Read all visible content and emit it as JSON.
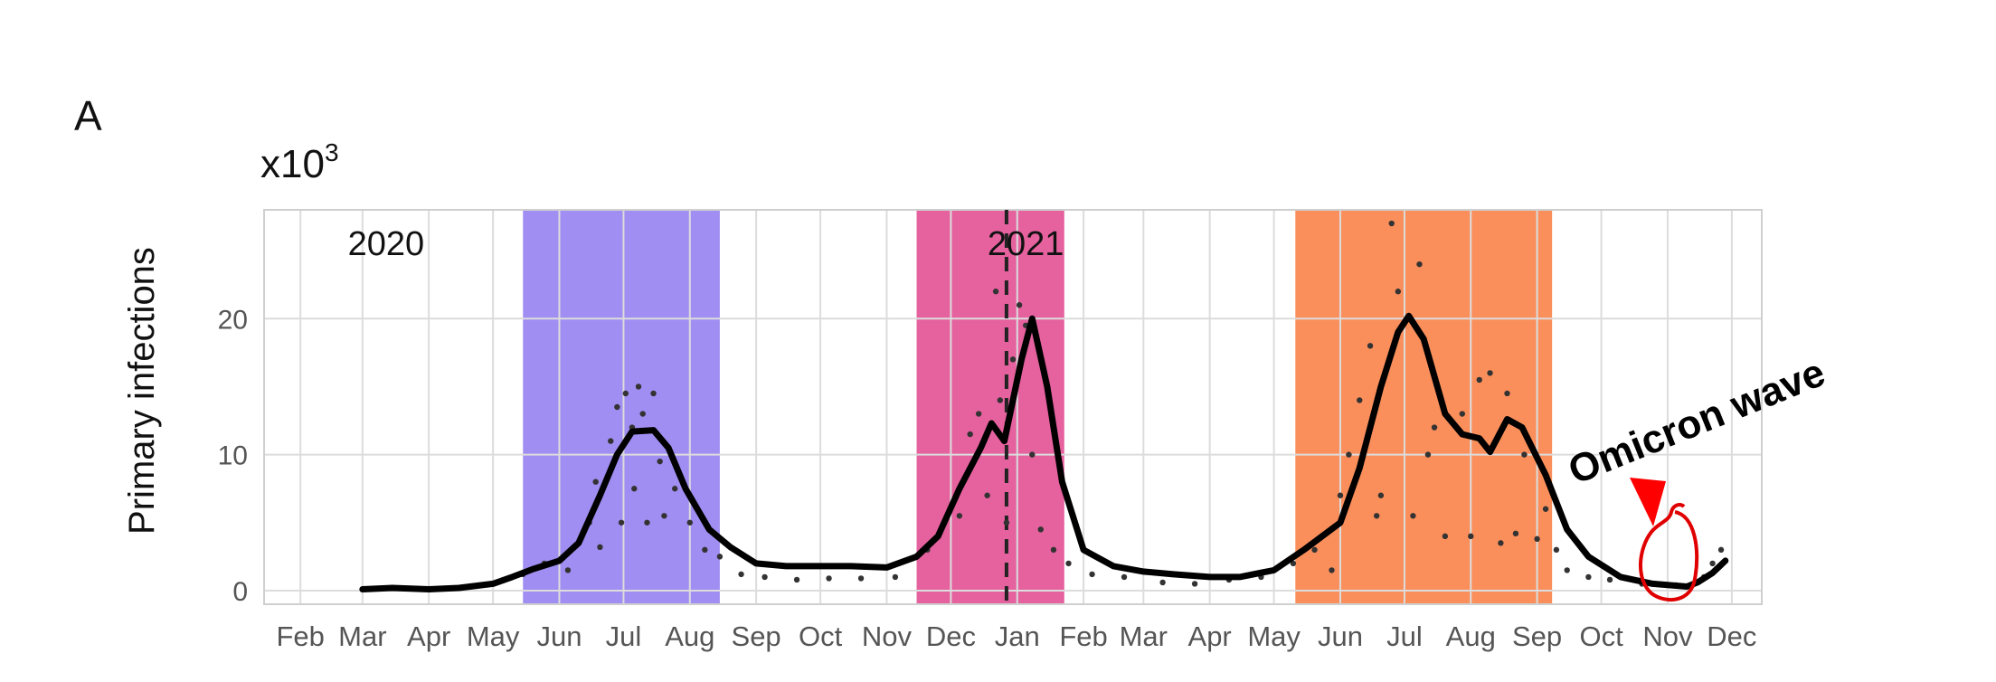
{
  "panel_label": "A",
  "chart_data": {
    "type": "line",
    "title": "",
    "ylabel": "Primary infections",
    "yscale_label": "x10",
    "yscale_exponent": "3",
    "xlabel": "",
    "ylim": [
      -1,
      28
    ],
    "yticks": [
      0,
      10,
      20
    ],
    "xlim": [
      "2020-01-15",
      "2021-12-15"
    ],
    "x_tick_dates": [
      "2020-02-01",
      "2020-03-01",
      "2020-04-01",
      "2020-05-01",
      "2020-06-01",
      "2020-07-01",
      "2020-08-01",
      "2020-09-01",
      "2020-10-01",
      "2020-11-01",
      "2020-12-01",
      "2021-01-01",
      "2021-02-01",
      "2021-03-01",
      "2021-04-01",
      "2021-05-01",
      "2021-06-01",
      "2021-07-01",
      "2021-08-01",
      "2021-09-01",
      "2021-10-01",
      "2021-11-01",
      "2021-12-01"
    ],
    "x_tick_labels": [
      "Feb",
      "Mar",
      "Apr",
      "May",
      "Jun",
      "Jul",
      "Aug",
      "Sep",
      "Oct",
      "Nov",
      "Dec",
      "Jan",
      "Feb",
      "Mar",
      "Apr",
      "May",
      "Jun",
      "Jul",
      "Aug",
      "Sep",
      "Oct",
      "Nov",
      "Dec"
    ],
    "year_labels": [
      {
        "text": "2020",
        "x": "2020-03-12"
      },
      {
        "text": "2021",
        "x": "2021-01-05"
      }
    ],
    "grid": true,
    "shaded_periods": [
      {
        "start": "2020-05-15",
        "end": "2020-08-15",
        "color": "#a08ef2"
      },
      {
        "start": "2020-11-15",
        "end": "2021-01-23",
        "color": "#e5629f"
      },
      {
        "start": "2021-05-11",
        "end": "2021-09-08",
        "color": "#fa8f5c"
      }
    ],
    "vertical_line": {
      "x": "2020-12-27",
      "style": "dashed",
      "color": "#222222"
    },
    "series": [
      {
        "style": "line",
        "color": "#000000",
        "points": [
          [
            "2020-03-01",
            0.1
          ],
          [
            "2020-03-15",
            0.2
          ],
          [
            "2020-04-01",
            0.1
          ],
          [
            "2020-04-15",
            0.2
          ],
          [
            "2020-05-01",
            0.5
          ],
          [
            "2020-05-10",
            1.0
          ],
          [
            "2020-05-20",
            1.6
          ],
          [
            "2020-06-01",
            2.2
          ],
          [
            "2020-06-10",
            3.5
          ],
          [
            "2020-06-20",
            7.0
          ],
          [
            "2020-06-28",
            10.0
          ],
          [
            "2020-07-05",
            11.7
          ],
          [
            "2020-07-15",
            11.8
          ],
          [
            "2020-07-22",
            10.5
          ],
          [
            "2020-07-30",
            7.5
          ],
          [
            "2020-08-10",
            4.5
          ],
          [
            "2020-08-20",
            3.2
          ],
          [
            "2020-09-01",
            2.0
          ],
          [
            "2020-09-15",
            1.8
          ],
          [
            "2020-10-01",
            1.8
          ],
          [
            "2020-10-15",
            1.8
          ],
          [
            "2020-11-01",
            1.7
          ],
          [
            "2020-11-15",
            2.5
          ],
          [
            "2020-11-25",
            4.0
          ],
          [
            "2020-12-05",
            7.5
          ],
          [
            "2020-12-15",
            10.5
          ],
          [
            "2020-12-20",
            12.3
          ],
          [
            "2020-12-26",
            11.0
          ],
          [
            "2021-01-03",
            17.0
          ],
          [
            "2021-01-08",
            20.0
          ],
          [
            "2021-01-15",
            15.0
          ],
          [
            "2021-01-22",
            8.0
          ],
          [
            "2021-02-01",
            3.0
          ],
          [
            "2021-02-15",
            1.8
          ],
          [
            "2021-03-01",
            1.4
          ],
          [
            "2021-03-15",
            1.2
          ],
          [
            "2021-04-01",
            1.0
          ],
          [
            "2021-04-15",
            1.0
          ],
          [
            "2021-05-01",
            1.5
          ],
          [
            "2021-05-15",
            3.0
          ],
          [
            "2021-06-01",
            5.0
          ],
          [
            "2021-06-10",
            9.0
          ],
          [
            "2021-06-20",
            15.0
          ],
          [
            "2021-06-28",
            19.0
          ],
          [
            "2021-07-03",
            20.2
          ],
          [
            "2021-07-10",
            18.5
          ],
          [
            "2021-07-20",
            13.0
          ],
          [
            "2021-07-28",
            11.5
          ],
          [
            "2021-08-05",
            11.2
          ],
          [
            "2021-08-10",
            10.2
          ],
          [
            "2021-08-18",
            12.6
          ],
          [
            "2021-08-25",
            12.0
          ],
          [
            "2021-09-05",
            8.5
          ],
          [
            "2021-09-15",
            4.5
          ],
          [
            "2021-09-25",
            2.5
          ],
          [
            "2021-10-10",
            1.0
          ],
          [
            "2021-10-25",
            0.5
          ],
          [
            "2021-11-10",
            0.3
          ],
          [
            "2021-11-15",
            0.6
          ],
          [
            "2021-11-22",
            1.3
          ],
          [
            "2021-11-28",
            2.2
          ]
        ]
      },
      {
        "style": "dots",
        "color": "#333333",
        "points": [
          [
            "2020-05-15",
            1.2
          ],
          [
            "2020-05-25",
            2.0
          ],
          [
            "2020-06-05",
            1.5
          ],
          [
            "2020-06-10",
            3.5
          ],
          [
            "2020-06-15",
            5.0
          ],
          [
            "2020-06-18",
            8.0
          ],
          [
            "2020-06-20",
            3.2
          ],
          [
            "2020-06-25",
            11.0
          ],
          [
            "2020-06-28",
            13.5
          ],
          [
            "2020-06-30",
            5.0
          ],
          [
            "2020-07-02",
            14.5
          ],
          [
            "2020-07-05",
            12.0
          ],
          [
            "2020-07-06",
            7.5
          ],
          [
            "2020-07-08",
            15.0
          ],
          [
            "2020-07-10",
            13.0
          ],
          [
            "2020-07-12",
            5.0
          ],
          [
            "2020-07-15",
            14.5
          ],
          [
            "2020-07-18",
            9.5
          ],
          [
            "2020-07-20",
            5.5
          ],
          [
            "2020-07-25",
            7.5
          ],
          [
            "2020-08-01",
            5.0
          ],
          [
            "2020-08-08",
            3.0
          ],
          [
            "2020-08-15",
            2.5
          ],
          [
            "2020-08-25",
            1.2
          ],
          [
            "2020-09-05",
            1.0
          ],
          [
            "2020-09-20",
            0.8
          ],
          [
            "2020-10-05",
            0.9
          ],
          [
            "2020-10-20",
            0.9
          ],
          [
            "2020-11-05",
            1.0
          ],
          [
            "2020-11-20",
            3.0
          ],
          [
            "2020-11-28",
            5.0
          ],
          [
            "2020-12-05",
            5.5
          ],
          [
            "2020-12-10",
            11.5
          ],
          [
            "2020-12-14",
            13.0
          ],
          [
            "2020-12-18",
            7.0
          ],
          [
            "2020-12-22",
            22.0
          ],
          [
            "2020-12-24",
            14.0
          ],
          [
            "2020-12-27",
            5.0
          ],
          [
            "2020-12-30",
            17.0
          ],
          [
            "2021-01-02",
            21.0
          ],
          [
            "2021-01-05",
            19.5
          ],
          [
            "2021-01-08",
            10.0
          ],
          [
            "2021-01-12",
            4.5
          ],
          [
            "2021-01-18",
            3.0
          ],
          [
            "2021-01-25",
            2.0
          ],
          [
            "2021-02-05",
            1.2
          ],
          [
            "2021-02-20",
            1.0
          ],
          [
            "2021-03-10",
            0.6
          ],
          [
            "2021-03-25",
            0.5
          ],
          [
            "2021-04-10",
            0.8
          ],
          [
            "2021-04-25",
            1.0
          ],
          [
            "2021-05-10",
            2.0
          ],
          [
            "2021-05-20",
            3.0
          ],
          [
            "2021-05-28",
            1.5
          ],
          [
            "2021-06-01",
            7.0
          ],
          [
            "2021-06-05",
            10.0
          ],
          [
            "2021-06-10",
            14.0
          ],
          [
            "2021-06-15",
            18.0
          ],
          [
            "2021-06-18",
            5.5
          ],
          [
            "2021-06-20",
            7.0
          ],
          [
            "2021-06-25",
            27.0
          ],
          [
            "2021-06-28",
            22.0
          ],
          [
            "2021-07-02",
            20.0
          ],
          [
            "2021-07-05",
            5.5
          ],
          [
            "2021-07-08",
            24.0
          ],
          [
            "2021-07-12",
            10.0
          ],
          [
            "2021-07-15",
            12.0
          ],
          [
            "2021-07-20",
            4.0
          ],
          [
            "2021-07-28",
            13.0
          ],
          [
            "2021-08-01",
            4.0
          ],
          [
            "2021-08-05",
            15.5
          ],
          [
            "2021-08-10",
            16.0
          ],
          [
            "2021-08-15",
            3.5
          ],
          [
            "2021-08-18",
            14.5
          ],
          [
            "2021-08-22",
            4.2
          ],
          [
            "2021-08-26",
            10.0
          ],
          [
            "2021-09-01",
            3.8
          ],
          [
            "2021-09-05",
            6.0
          ],
          [
            "2021-09-10",
            3.0
          ],
          [
            "2021-09-15",
            1.5
          ],
          [
            "2021-09-25",
            1.0
          ],
          [
            "2021-10-05",
            0.8
          ],
          [
            "2021-10-20",
            0.5
          ],
          [
            "2021-11-05",
            0.4
          ],
          [
            "2021-11-18",
            1.0
          ],
          [
            "2021-11-22",
            2.0
          ],
          [
            "2021-11-26",
            3.0
          ]
        ]
      }
    ],
    "annotation": {
      "text": "Omicron wave",
      "arrow_color": "#ff0000",
      "circle_color": "#e00000"
    }
  }
}
